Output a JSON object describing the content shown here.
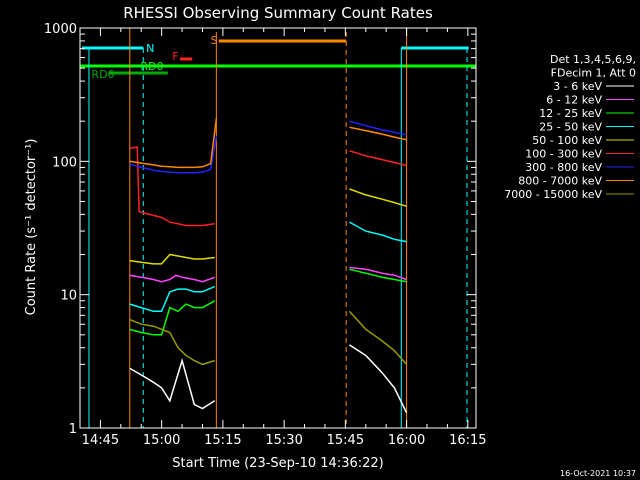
{
  "chart_data": {
    "type": "line",
    "title": "RHESSI Observing Summary Count Rates",
    "xlabel": "Start Time (23-Sep-10 14:36:22)",
    "ylabel": "Count Rate (s⁻¹ detector⁻¹)",
    "yscale": "log",
    "ylim": [
      1,
      1000
    ],
    "xlim_minutes": [
      40,
      137
    ],
    "x_unit": "minutes after 14:00 UT",
    "xticks": [
      {
        "x": 45,
        "label": "14:45"
      },
      {
        "x": 60,
        "label": "15:00"
      },
      {
        "x": 75,
        "label": "15:15"
      },
      {
        "x": 90,
        "label": "15:30"
      },
      {
        "x": 105,
        "label": "15:45"
      },
      {
        "x": 120,
        "label": "16:00"
      },
      {
        "x": 135,
        "label": "16:15"
      }
    ],
    "yticks": [
      {
        "y": 1,
        "label": "1"
      },
      {
        "y": 10,
        "label": "10"
      },
      {
        "y": 100,
        "label": "100"
      },
      {
        "y": 1000,
        "label": "1000"
      }
    ],
    "legend_header": [
      "Det 1,3,4,5,6,9,",
      "FDecim 1, Att 0"
    ],
    "legend_position": "right",
    "footer": "16-Oct-2021 10:37",
    "segments": [
      [
        52.2,
        73.4
      ],
      [
        105.2,
        120.0
      ]
    ],
    "series": [
      {
        "name": "3 - 6 keV",
        "color": "#ffffff",
        "values": [
          [
            52.2,
            2.8
          ],
          [
            55.0,
            2.5
          ],
          [
            58.0,
            2.2
          ],
          [
            60.0,
            2.0
          ],
          [
            62.0,
            1.6
          ],
          [
            65.0,
            3.2
          ],
          [
            68.0,
            1.5
          ],
          [
            70.0,
            1.4
          ],
          [
            73.0,
            1.6
          ],
          [
            106.0,
            4.2
          ],
          [
            110.0,
            3.5
          ],
          [
            114.0,
            2.6
          ],
          [
            117.0,
            2.0
          ],
          [
            120.0,
            1.3
          ]
        ]
      },
      {
        "name": "6 - 12 keV",
        "color": "#ff44ff",
        "values": [
          [
            52.2,
            14.0
          ],
          [
            55.0,
            13.5
          ],
          [
            58.0,
            13.0
          ],
          [
            60.0,
            12.5
          ],
          [
            62.0,
            13.0
          ],
          [
            63.5,
            14.0
          ],
          [
            65.0,
            13.5
          ],
          [
            68.0,
            13.0
          ],
          [
            70.0,
            12.5
          ],
          [
            73.0,
            13.5
          ],
          [
            106.0,
            16.0
          ],
          [
            110.0,
            15.5
          ],
          [
            114.0,
            14.5
          ],
          [
            117.0,
            14.0
          ],
          [
            120.0,
            13.0
          ]
        ]
      },
      {
        "name": "12 - 25 keV",
        "color": "#00ff00",
        "values": [
          [
            52.2,
            5.5
          ],
          [
            55.0,
            5.2
          ],
          [
            58.0,
            5.0
          ],
          [
            60.0,
            5.0
          ],
          [
            62.0,
            8.0
          ],
          [
            64.0,
            7.5
          ],
          [
            66.0,
            8.5
          ],
          [
            68.0,
            8.0
          ],
          [
            70.0,
            8.0
          ],
          [
            73.0,
            9.0
          ],
          [
            106.0,
            15.5
          ],
          [
            110.0,
            14.5
          ],
          [
            114.0,
            13.5
          ],
          [
            117.0,
            13.0
          ],
          [
            120.0,
            12.5
          ]
        ]
      },
      {
        "name": "25 - 50 keV",
        "color": "#00ffff",
        "values": [
          [
            52.2,
            8.5
          ],
          [
            55.0,
            8.0
          ],
          [
            58.0,
            7.5
          ],
          [
            60.0,
            7.5
          ],
          [
            62.0,
            10.5
          ],
          [
            64.0,
            11.0
          ],
          [
            66.0,
            11.0
          ],
          [
            68.0,
            10.5
          ],
          [
            70.0,
            10.5
          ],
          [
            73.0,
            11.5
          ],
          [
            106.0,
            35.0
          ],
          [
            110.0,
            30.0
          ],
          [
            114.0,
            28.0
          ],
          [
            117.0,
            26.0
          ],
          [
            120.0,
            25.0
          ]
        ]
      },
      {
        "name": "50 - 100 keV",
        "color": "#dddd00",
        "values": [
          [
            52.2,
            18.0
          ],
          [
            55.0,
            17.5
          ],
          [
            58.0,
            17.0
          ],
          [
            60.0,
            17.0
          ],
          [
            62.0,
            20.0
          ],
          [
            64.0,
            19.5
          ],
          [
            66.0,
            19.0
          ],
          [
            68.0,
            18.5
          ],
          [
            70.0,
            18.5
          ],
          [
            73.0,
            19.0
          ],
          [
            106.0,
            62.0
          ],
          [
            110.0,
            56.0
          ],
          [
            114.0,
            52.0
          ],
          [
            117.0,
            49.0
          ],
          [
            120.0,
            46.0
          ]
        ]
      },
      {
        "name": "100 - 300 keV",
        "color": "#ff2222",
        "values": [
          [
            52.2,
            125.0
          ],
          [
            54.0,
            128.0
          ],
          [
            54.5,
            42.0
          ],
          [
            57.0,
            40.0
          ],
          [
            60.0,
            38.0
          ],
          [
            62.0,
            35.0
          ],
          [
            64.0,
            34.0
          ],
          [
            66.0,
            33.0
          ],
          [
            68.0,
            33.0
          ],
          [
            70.0,
            33.0
          ],
          [
            73.0,
            34.0
          ],
          [
            106.0,
            120.0
          ],
          [
            110.0,
            110.0
          ],
          [
            114.0,
            103.0
          ],
          [
            117.0,
            98.0
          ],
          [
            120.0,
            93.0
          ]
        ]
      },
      {
        "name": "300 - 800 keV",
        "color": "#2222ff",
        "values": [
          [
            52.2,
            95.0
          ],
          [
            55.0,
            90.0
          ],
          [
            58.0,
            86.0
          ],
          [
            60.0,
            84.0
          ],
          [
            62.0,
            83.0
          ],
          [
            64.0,
            82.0
          ],
          [
            66.0,
            82.0
          ],
          [
            68.0,
            82.0
          ],
          [
            70.0,
            83.0
          ],
          [
            72.0,
            87.0
          ],
          [
            73.4,
            155.0
          ],
          [
            106.0,
            200.0
          ],
          [
            110.0,
            185.0
          ],
          [
            114.0,
            172.0
          ],
          [
            117.0,
            165.0
          ],
          [
            120.0,
            158.0
          ]
        ]
      },
      {
        "name": "800 - 7000 keV",
        "color": "#ff8800",
        "values": [
          [
            52.2,
            100.0
          ],
          [
            55.0,
            97.0
          ],
          [
            58.0,
            94.0
          ],
          [
            60.0,
            92.0
          ],
          [
            62.0,
            91.0
          ],
          [
            64.0,
            90.0
          ],
          [
            66.0,
            90.0
          ],
          [
            68.0,
            90.0
          ],
          [
            70.0,
            91.0
          ],
          [
            72.0,
            96.0
          ],
          [
            73.4,
            210.0
          ],
          [
            106.0,
            180.0
          ],
          [
            110.0,
            170.0
          ],
          [
            114.0,
            160.0
          ],
          [
            117.0,
            152.0
          ],
          [
            120.0,
            145.0
          ]
        ]
      },
      {
        "name": "7000 - 15000 keV",
        "color": "#999900",
        "values": [
          [
            52.2,
            6.5
          ],
          [
            55.0,
            6.0
          ],
          [
            58.0,
            5.8
          ],
          [
            60.0,
            5.5
          ],
          [
            62.0,
            5.2
          ],
          [
            64.0,
            4.0
          ],
          [
            66.0,
            3.5
          ],
          [
            68.0,
            3.2
          ],
          [
            70.0,
            3.0
          ],
          [
            73.0,
            3.2
          ],
          [
            106.0,
            7.5
          ],
          [
            110.0,
            5.5
          ],
          [
            114.0,
            4.5
          ],
          [
            117.0,
            3.8
          ],
          [
            120.0,
            3.0
          ]
        ]
      }
    ],
    "annotations": [
      {
        "label": "N",
        "color": "#00ffff"
      },
      {
        "label": "RD0",
        "color": "#00ff00"
      },
      {
        "label": "RD6",
        "color": "#00aa00"
      },
      {
        "label": "F",
        "color": "#ff2222"
      },
      {
        "label": "S",
        "color": "#ff8800"
      }
    ]
  }
}
